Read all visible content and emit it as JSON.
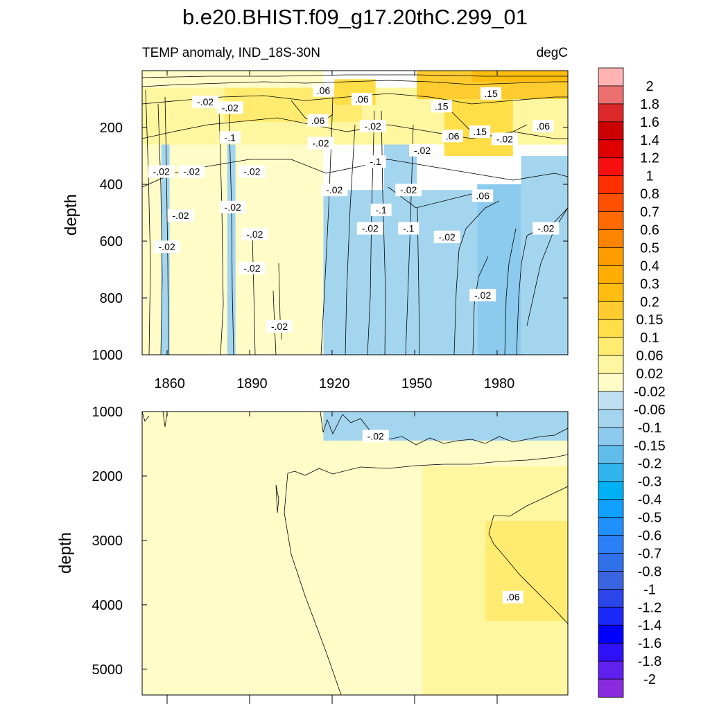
{
  "chart_data": {
    "type": "heatmap",
    "title": "b.e20.BHIST.f09_g17.20thC.299_01",
    "subtitle_left": "TEMP anomaly, IND_18S-30N",
    "subtitle_right": "degC",
    "xlim": [
      1850,
      2005
    ],
    "x_ticks": [
      1860,
      1890,
      1920,
      1950,
      1980
    ],
    "panels": [
      {
        "name": "upper-ocean",
        "ylabel": "depth",
        "ylim": [
          0,
          1000
        ],
        "y_ticks": [
          200,
          400,
          600,
          800,
          1000
        ],
        "regions": [
          {
            "level": "0.02",
            "x": [
              1850,
              1916
            ],
            "y": [
              0,
              1000
            ]
          },
          {
            "level": "-0.06",
            "x": [
              1916,
              1972
            ],
            "y": [
              420,
              1000
            ]
          },
          {
            "level": "-0.1",
            "x": [
              1972,
              1988
            ],
            "y": [
              400,
              1000
            ]
          },
          {
            "level": "-0.06",
            "x": [
              1988,
              2005
            ],
            "y": [
              300,
              1000
            ]
          },
          {
            "level": "-0.06",
            "x": [
              1857,
              1860
            ],
            "y": [
              160,
              1000
            ]
          },
          {
            "level": "-0.06",
            "x": [
              1881,
              1884
            ],
            "y": [
              160,
              1000
            ]
          },
          {
            "level": "-0.06",
            "x": [
              1938,
              1950
            ],
            "y": [
              100,
              600
            ]
          },
          {
            "level": "0.06",
            "x": [
              1850,
              2005
            ],
            "y": [
              60,
              260
            ]
          },
          {
            "level": "0.1",
            "x": [
              1880,
              1930
            ],
            "y": [
              60,
              180
            ]
          },
          {
            "level": "0.15",
            "x": [
              1920,
              1935
            ],
            "y": [
              30,
              120
            ]
          },
          {
            "level": "0.15",
            "x": [
              1960,
              1985
            ],
            "y": [
              100,
              300
            ]
          },
          {
            "level": "0.2",
            "x": [
              1950,
              2005
            ],
            "y": [
              0,
              100
            ]
          },
          {
            "level": "0.3",
            "x": [
              1970,
              2005
            ],
            "y": [
              0,
              40
            ]
          }
        ],
        "contour_labels": [
          {
            "text": "-.02",
            "x": 1873,
            "y": 110
          },
          {
            "text": "-.02",
            "x": 1882,
            "y": 130
          },
          {
            "text": ".06",
            "x": 1916,
            "y": 70
          },
          {
            "text": ".06",
            "x": 1930,
            "y": 100
          },
          {
            "text": ".15",
            "x": 1959,
            "y": 125
          },
          {
            "text": ".15",
            "x": 1977,
            "y": 80
          },
          {
            "text": ".06",
            "x": 1914,
            "y": 175
          },
          {
            "text": "-.02",
            "x": 1934,
            "y": 195
          },
          {
            "text": "-.1",
            "x": 1882,
            "y": 235
          },
          {
            "text": ".06",
            "x": 1963,
            "y": 230
          },
          {
            "text": ".15",
            "x": 1973,
            "y": 215
          },
          {
            "text": "-.02",
            "x": 1982,
            "y": 240
          },
          {
            "text": ".06",
            "x": 1996,
            "y": 195
          },
          {
            "text": "-.02",
            "x": 1915,
            "y": 255
          },
          {
            "text": "-.02",
            "x": 1952,
            "y": 280
          },
          {
            "text": "-.02",
            "x": 1857,
            "y": 355
          },
          {
            "text": "-.02",
            "x": 1868,
            "y": 355
          },
          {
            "text": "-.02",
            "x": 1890,
            "y": 355
          },
          {
            "text": "-.1",
            "x": 1935,
            "y": 320
          },
          {
            "text": "-.02",
            "x": 1920,
            "y": 420
          },
          {
            "text": "-.02",
            "x": 1947,
            "y": 420
          },
          {
            "text": ".06",
            "x": 1974,
            "y": 440
          },
          {
            "text": "-.02",
            "x": 1883,
            "y": 480
          },
          {
            "text": "-.1",
            "x": 1937,
            "y": 490
          },
          {
            "text": "-.02",
            "x": 1864,
            "y": 510
          },
          {
            "text": "-.02",
            "x": 1933,
            "y": 555
          },
          {
            "text": "-.1",
            "x": 1947,
            "y": 555
          },
          {
            "text": "-.02",
            "x": 1961,
            "y": 585
          },
          {
            "text": "-.02",
            "x": 1997,
            "y": 555
          },
          {
            "text": "-.02",
            "x": 1891,
            "y": 575
          },
          {
            "text": "-.02",
            "x": 1859,
            "y": 620
          },
          {
            "text": "-.02",
            "x": 1890,
            "y": 695
          },
          {
            "text": "-.02",
            "x": 1974,
            "y": 790
          },
          {
            "text": "-.02",
            "x": 1900,
            "y": 900
          }
        ]
      },
      {
        "name": "deep-ocean",
        "ylabel": "depth",
        "ylim": [
          1000,
          5400
        ],
        "y_ticks": [
          1000,
          2000,
          3000,
          4000,
          5000
        ],
        "regions": [
          {
            "level": "0.02",
            "x": [
              1850,
              2005
            ],
            "y": [
              1000,
              5400
            ]
          },
          {
            "level": "-0.06",
            "x": [
              1916,
              2005
            ],
            "y": [
              1000,
              1450
            ]
          },
          {
            "level": "0.06",
            "x": [
              1952,
              2005
            ],
            "y": [
              1850,
              5400
            ]
          },
          {
            "level": "0.1",
            "x": [
              1975,
              2005
            ],
            "y": [
              2700,
              4250
            ]
          }
        ],
        "contour_labels": [
          {
            "text": "-.02",
            "x": 1935,
            "y": 1380
          },
          {
            "text": ".06",
            "x": 1985,
            "y": 3880
          }
        ]
      }
    ],
    "colorbar": {
      "levels": [
        "2",
        "1.8",
        "1.6",
        "1.4",
        "1.2",
        "1",
        "0.8",
        "0.7",
        "0.6",
        "0.5",
        "0.4",
        "0.3",
        "0.2",
        "0.15",
        "0.1",
        "0.06",
        "0.02",
        "-0.02",
        "-0.06",
        "-0.1",
        "-0.15",
        "-0.2",
        "-0.3",
        "-0.4",
        "-0.5",
        "-0.6",
        "-0.7",
        "-0.8",
        "-1",
        "-1.2",
        "-1.4",
        "-1.6",
        "-1.8",
        "-2"
      ],
      "colors": [
        "#ffb3b3",
        "#ec7070",
        "#dc2828",
        "#cc0000",
        "#e00000",
        "#f81010",
        "#ff3000",
        "#ff5000",
        "#ff6a00",
        "#ff8400",
        "#ff9d00",
        "#ffad00",
        "#ffbd10",
        "#ffcc30",
        "#ffde48",
        "#ffeb70",
        "#fff6a0",
        "#fffcc8",
        "#bfe0f0",
        "#a4d5ef",
        "#8ccaee",
        "#60bdea",
        "#30b5ed",
        "#00b0f4",
        "#10a0ff",
        "#2090ff",
        "#2a80f8",
        "#3070e8",
        "#3a65e0",
        "#2a45e8",
        "#1a28f8",
        "#0000ff",
        "#3010f8",
        "#6020f0",
        "#8a2be2"
      ]
    }
  }
}
